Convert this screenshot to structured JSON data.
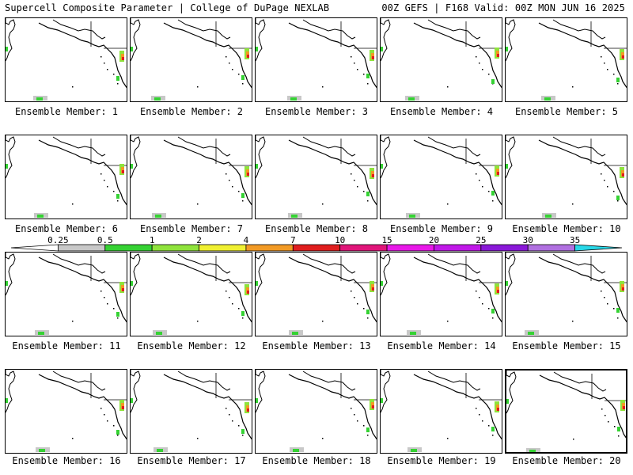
{
  "header": {
    "title_left": "Supercell Composite Parameter | College of DuPage NEXLAB",
    "title_right": "00Z GEFS | F168 Valid: 00Z MON JUN 16 2025"
  },
  "members": [
    {
      "label": "Ensemble Member: 1"
    },
    {
      "label": "Ensemble Member: 2"
    },
    {
      "label": "Ensemble Member: 3"
    },
    {
      "label": "Ensemble Member: 4"
    },
    {
      "label": "Ensemble Member: 5"
    },
    {
      "label": "Ensemble Member: 6"
    },
    {
      "label": "Ensemble Member: 7"
    },
    {
      "label": "Ensemble Member: 8"
    },
    {
      "label": "Ensemble Member: 9"
    },
    {
      "label": "Ensemble Member: 10"
    },
    {
      "label": "Ensemble Member: 11"
    },
    {
      "label": "Ensemble Member: 12"
    },
    {
      "label": "Ensemble Member: 13"
    },
    {
      "label": "Ensemble Member: 14"
    },
    {
      "label": "Ensemble Member: 15"
    },
    {
      "label": "Ensemble Member: 16"
    },
    {
      "label": "Ensemble Member: 17"
    },
    {
      "label": "Ensemble Member: 18"
    },
    {
      "label": "Ensemble Member: 19"
    },
    {
      "label": "Ensemble Member: 20"
    }
  ],
  "colorbar": {
    "labels": [
      "0.25",
      "0.5",
      "1",
      "2",
      "4",
      "7",
      "10",
      "15",
      "20",
      "25",
      "30",
      "35"
    ],
    "colors": [
      "#ffffff",
      "#c8c8c8",
      "#35d233",
      "#8fe33c",
      "#f0f031",
      "#f29a24",
      "#e01e1e",
      "#e0157a",
      "#e818e8",
      "#c018e8",
      "#8a18d8",
      "#b070e0",
      "#28d8e8"
    ]
  }
}
